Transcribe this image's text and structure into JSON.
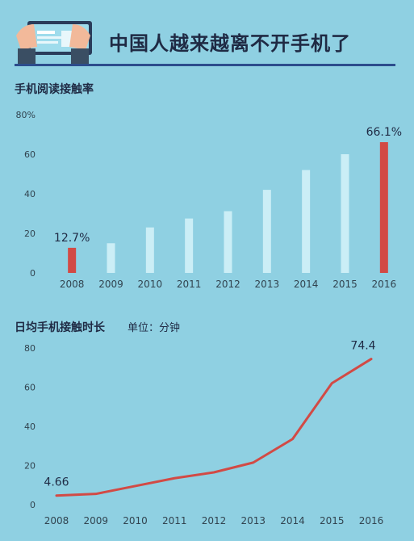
{
  "header": {
    "title": "中国人越来越离不开手机了",
    "icon": "hands-holding-phone-icon"
  },
  "colors": {
    "background": "#8fd0e2",
    "highlight_bar": "#d24a45",
    "normal_bar": "#cbeef6",
    "line": "#d24a45",
    "title_rule": "#2c4d8c",
    "axis_text": "#31434f"
  },
  "chart_data": [
    {
      "type": "bar",
      "title": "手机阅读接触率",
      "categories": [
        "2008",
        "2009",
        "2010",
        "2011",
        "2012",
        "2013",
        "2014",
        "2015",
        "2016"
      ],
      "values": [
        12.7,
        15.0,
        23.0,
        27.5,
        31.2,
        42.0,
        52.0,
        60.0,
        66.1
      ],
      "highlight_categories": [
        "2008",
        "2016"
      ],
      "data_labels": [
        {
          "category": "2008",
          "text": "12.7%"
        },
        {
          "category": "2016",
          "text": "66.1%"
        }
      ],
      "ylim": [
        0,
        80
      ],
      "yticks": [
        "0",
        "20",
        "40",
        "60",
        "80%"
      ],
      "grid": false
    },
    {
      "type": "line",
      "title": "日均手机接触时长",
      "unit_label": "单位：分钟",
      "categories": [
        "2008",
        "2009",
        "2010",
        "2011",
        "2012",
        "2013",
        "2014",
        "2015",
        "2016"
      ],
      "values": [
        4.66,
        5.5,
        9.5,
        13.5,
        16.5,
        21.5,
        33.5,
        62.0,
        74.4
      ],
      "data_labels": [
        {
          "category": "2008",
          "text": "4.66"
        },
        {
          "category": "2016",
          "text": "74.4"
        }
      ],
      "ylim": [
        0,
        80
      ],
      "yticks": [
        "0",
        "20",
        "40",
        "60",
        "80"
      ],
      "grid": false
    }
  ]
}
